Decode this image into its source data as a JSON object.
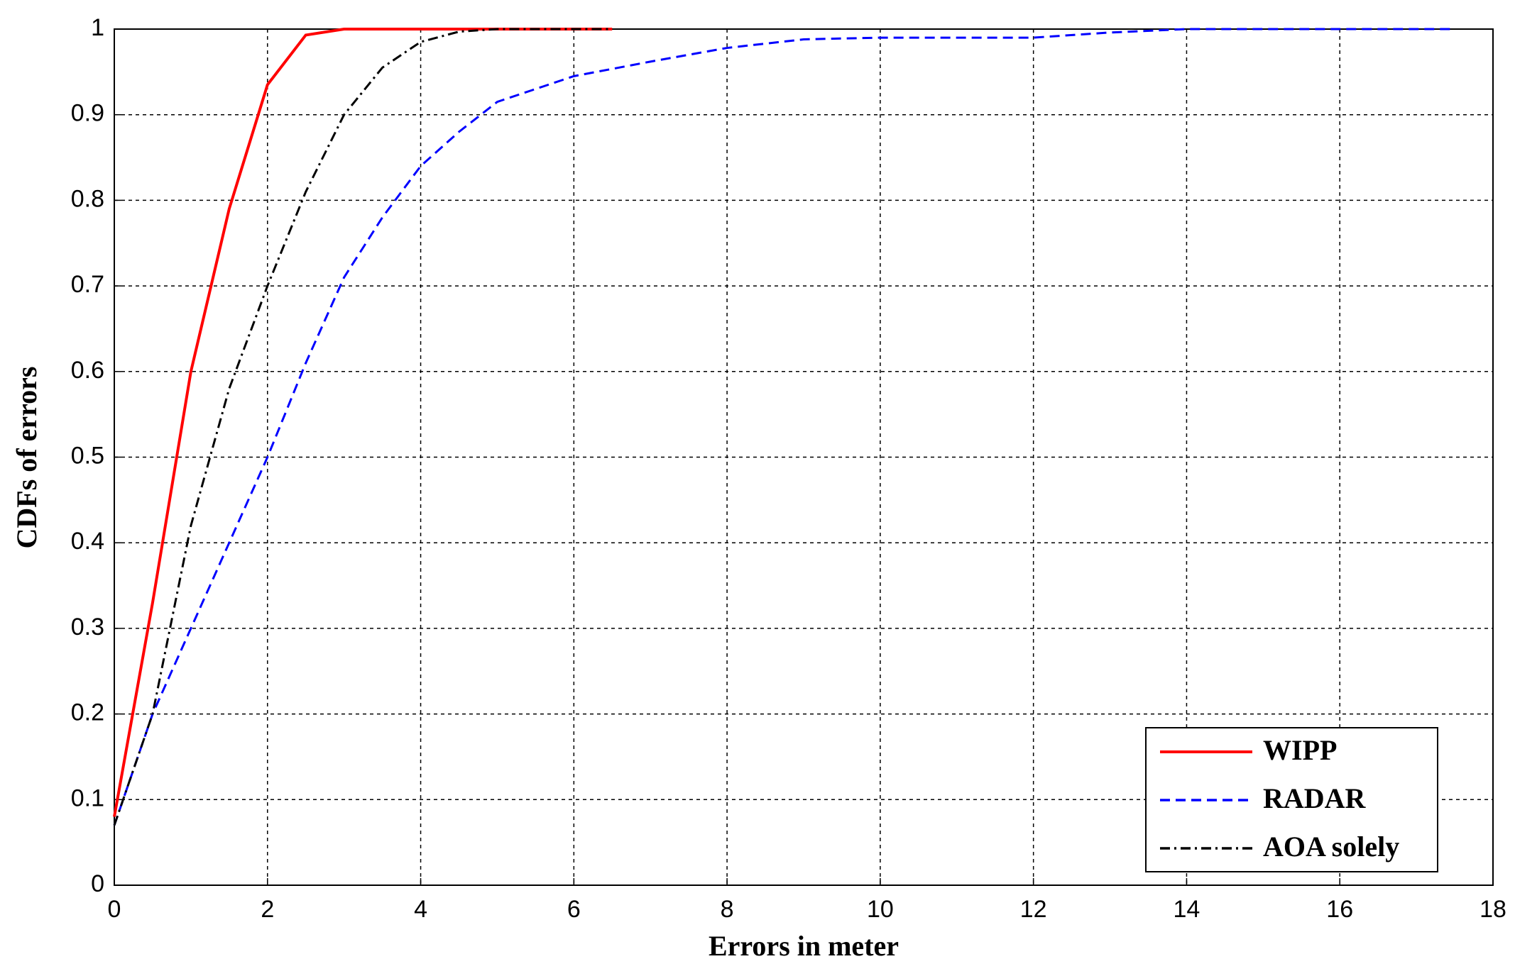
{
  "chart_data": {
    "type": "line",
    "xlabel": "Errors in meter",
    "ylabel": "CDFs of errors",
    "xlim": [
      0,
      18
    ],
    "ylim": [
      0,
      1
    ],
    "xticks": [
      0,
      2,
      4,
      6,
      8,
      10,
      12,
      14,
      16,
      18
    ],
    "yticks": [
      0,
      0.1,
      0.2,
      0.3,
      0.4,
      0.5,
      0.6,
      0.7,
      0.8,
      0.9,
      1
    ],
    "grid": true,
    "legend": "lower right",
    "series": [
      {
        "name": "WIPP",
        "color": "#ff0000",
        "dash": "solid",
        "x": [
          0,
          0.5,
          1,
          1.5,
          2,
          2.5,
          3,
          6.5
        ],
        "values": [
          0.08,
          0.33,
          0.6,
          0.79,
          0.935,
          0.993,
          1,
          1
        ]
      },
      {
        "name": "RADAR",
        "color": "#0000ff",
        "dash": "dashed",
        "x": [
          0,
          0.5,
          1,
          1.5,
          2,
          2.5,
          3,
          3.5,
          4,
          4.5,
          5,
          6,
          7,
          8,
          9,
          10,
          12,
          13,
          14,
          17.5
        ],
        "values": [
          0.07,
          0.2,
          0.3,
          0.4,
          0.5,
          0.61,
          0.71,
          0.78,
          0.84,
          0.88,
          0.915,
          0.945,
          0.962,
          0.978,
          0.988,
          0.99,
          0.99,
          0.996,
          1,
          1
        ]
      },
      {
        "name": "AOA solely",
        "color": "#000000",
        "dash": "dashdot",
        "x": [
          0,
          0.5,
          1,
          1.5,
          2,
          2.5,
          3,
          3.5,
          4,
          4.5,
          5,
          6.5
        ],
        "values": [
          0.07,
          0.2,
          0.42,
          0.58,
          0.7,
          0.81,
          0.9,
          0.955,
          0.985,
          0.997,
          1,
          1
        ]
      }
    ]
  }
}
